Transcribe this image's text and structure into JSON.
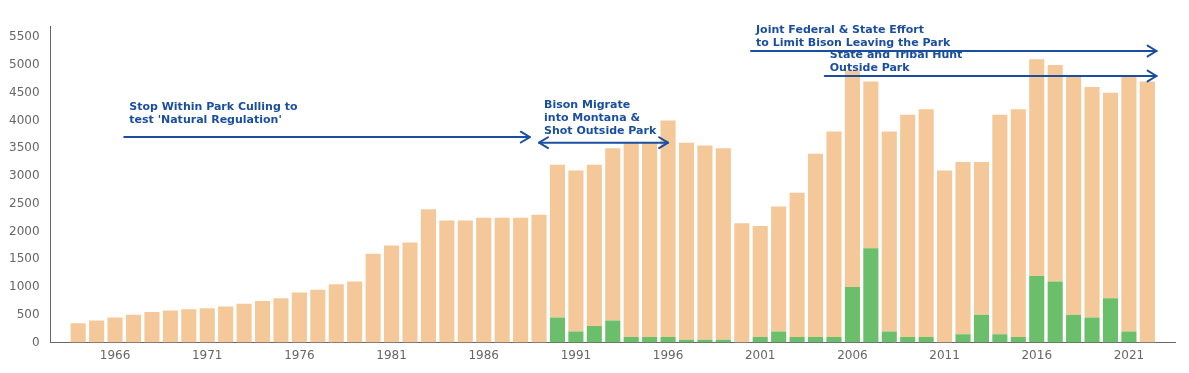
{
  "chart_data": {
    "type": "bar",
    "stacked": true,
    "grid": false,
    "x": [
      1964,
      1965,
      1966,
      1967,
      1968,
      1969,
      1970,
      1971,
      1972,
      1973,
      1974,
      1975,
      1976,
      1977,
      1978,
      1979,
      1980,
      1981,
      1982,
      1983,
      1984,
      1985,
      1986,
      1987,
      1988,
      1989,
      1990,
      1991,
      1992,
      1993,
      1994,
      1995,
      1996,
      1997,
      1998,
      1999,
      2000,
      2001,
      2002,
      2003,
      2004,
      2005,
      2006,
      2007,
      2008,
      2009,
      2010,
      2011,
      2012,
      2013,
      2014,
      2015,
      2016,
      2017,
      2018,
      2019,
      2020,
      2021,
      2022
    ],
    "series": [
      {
        "color": "#6BBF6B",
        "values": [
          0,
          0,
          0,
          0,
          0,
          0,
          0,
          0,
          0,
          0,
          0,
          0,
          0,
          0,
          0,
          0,
          0,
          0,
          0,
          0,
          0,
          0,
          0,
          0,
          0,
          0,
          450,
          200,
          300,
          400,
          100,
          100,
          100,
          50,
          50,
          50,
          0,
          100,
          200,
          100,
          100,
          100,
          1000,
          1700,
          200,
          100,
          100,
          0,
          150,
          500,
          150,
          100,
          1200,
          1100,
          500,
          450,
          800,
          200,
          0
        ]
      },
      {
        "color": "#F5C89A",
        "values": [
          350,
          400,
          450,
          500,
          550,
          580,
          600,
          620,
          650,
          700,
          750,
          800,
          900,
          950,
          1050,
          1100,
          1600,
          1750,
          1800,
          2400,
          2200,
          2200,
          2250,
          2250,
          2250,
          2300,
          2750,
          2900,
          2900,
          3100,
          3500,
          3500,
          3900,
          3550,
          3500,
          3450,
          2150,
          2000,
          2250,
          2600,
          3300,
          3700,
          3900,
          3000,
          3600,
          4000,
          4100,
          3100,
          3100,
          2750,
          3950,
          4100,
          3900,
          3900,
          4300,
          4150,
          3700,
          4600,
          4700
        ]
      }
    ],
    "xlim": [
      1962.5,
      2023.5
    ],
    "xticks": [
      1966,
      1971,
      1976,
      1981,
      1986,
      1991,
      1996,
      2001,
      2006,
      2011,
      2016,
      2021
    ],
    "ylim": [
      0,
      5700
    ],
    "yticks": [
      0,
      500,
      1000,
      1500,
      2000,
      2500,
      3000,
      3500,
      4000,
      4500,
      5000,
      5500
    ],
    "annotations": [
      {
        "text": "Stop Within Park Culling to\ntest 'Natural Regulation'",
        "x": [
          1966.5,
          1988.5
        ],
        "y": 3700,
        "text_y": 3900,
        "arrow": "end",
        "color": "#1A4FA0"
      },
      {
        "text": "Bison Migrate\ninto Montana &\nShot Outside Park",
        "x": [
          1989.0,
          1996.0
        ],
        "y": 3600,
        "text_y": 3700,
        "arrow": "both",
        "color": "#1A4FA0"
      },
      {
        "text": "Joint Federal & State Effort\nto Limit Bison Leaving the Park",
        "x": [
          2000.5,
          2022.5
        ],
        "y": 5250,
        "text_y": 5300,
        "arrow": "end",
        "color": "#1A4FA0"
      },
      {
        "text": "State and Tribal Hunt\nOutside Park",
        "x": [
          2004.5,
          2022.5
        ],
        "y": 4800,
        "text_y": 4850,
        "arrow": "end",
        "color": "#1A4FA0"
      }
    ]
  }
}
